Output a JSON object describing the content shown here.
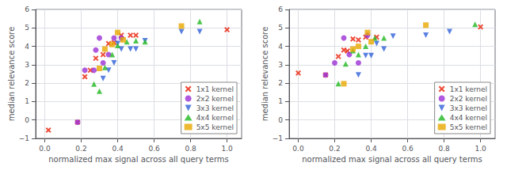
{
  "chart_data": [
    {
      "type": "scatter",
      "xlabel": "normalized max signal across all query terms",
      "ylabel": "median relevance score",
      "xlim": [
        -0.05,
        1.08
      ],
      "ylim": [
        -1.0,
        6.0
      ],
      "xticks": [
        {
          "value": 0.0,
          "label": "0.0"
        },
        0.2,
        0.4,
        0.6,
        0.8,
        {
          "value": 1.0,
          "label": "1.0"
        }
      ],
      "yticks": [
        {
          "value": -1,
          "label": "−1"
        },
        0,
        1,
        2,
        3,
        4,
        5,
        6
      ],
      "grid": true,
      "legend": "lower right",
      "series": [
        {
          "name": "1x1 kernel",
          "color": "#e8220a",
          "marker": "x",
          "x": [
            0.02,
            0.18,
            0.22,
            0.25,
            0.28,
            0.32,
            0.35,
            0.38,
            0.42,
            0.47,
            0.5,
            1.0
          ],
          "values": [
            -0.55,
            -0.12,
            2.35,
            2.7,
            3.35,
            3.55,
            4.15,
            4.2,
            4.6,
            4.6,
            4.6,
            4.9
          ]
        },
        {
          "name": "2x2 kernel",
          "color": "#9b30d4",
          "marker": "circle",
          "x": [
            0.18,
            0.22,
            0.27,
            0.28,
            0.3,
            0.32,
            0.35,
            0.38,
            0.42
          ],
          "values": [
            -0.12,
            2.7,
            2.7,
            3.8,
            4.45,
            3.1,
            3.55,
            4.45,
            4.45
          ]
        },
        {
          "name": "3x3 kernel",
          "color": "#3060d8",
          "marker": "triangle_down",
          "x": [
            0.32,
            0.35,
            0.38,
            0.4,
            0.42,
            0.47,
            0.5,
            0.55,
            0.75,
            0.85
          ],
          "values": [
            2.25,
            2.7,
            3.1,
            4.15,
            3.85,
            3.85,
            3.85,
            4.3,
            4.8,
            4.8
          ]
        },
        {
          "name": "4x4 kernel",
          "color": "#22b822",
          "marker": "triangle_up",
          "x": [
            0.27,
            0.3,
            0.33,
            0.37,
            0.4,
            0.45,
            0.5,
            0.55,
            0.85
          ],
          "values": [
            1.95,
            1.57,
            2.85,
            3.55,
            4.05,
            4.25,
            4.3,
            4.25,
            5.35
          ]
        },
        {
          "name": "5x5 kernel",
          "color": "#e8a800",
          "marker": "square",
          "x": [
            0.3,
            0.33,
            0.37,
            0.4,
            0.43,
            0.75
          ],
          "values": [
            2.8,
            3.85,
            4.1,
            4.75,
            4.35,
            5.1
          ]
        }
      ]
    },
    {
      "type": "scatter",
      "xlabel": "normalized max signal across all query terms",
      "ylabel": "median relevance score",
      "xlim": [
        -0.05,
        1.08
      ],
      "ylim": [
        -1.0,
        6.0
      ],
      "xticks": [
        {
          "value": 0.0,
          "label": "0.0"
        },
        0.2,
        0.4,
        0.6,
        0.8,
        {
          "value": 1.0,
          "label": "1.0"
        }
      ],
      "yticks": [
        {
          "value": -1,
          "label": "−1"
        },
        0,
        1,
        2,
        3,
        4,
        5,
        6
      ],
      "grid": true,
      "legend": "lower right",
      "series": [
        {
          "name": "1x1 kernel",
          "color": "#e8220a",
          "marker": "x",
          "x": [
            0.0,
            0.15,
            0.22,
            0.25,
            0.27,
            0.3,
            0.33,
            0.37,
            0.43,
            1.0
          ],
          "values": [
            2.55,
            2.45,
            3.45,
            3.8,
            3.75,
            4.4,
            4.35,
            4.5,
            4.5,
            5.05
          ]
        },
        {
          "name": "2x2 kernel",
          "color": "#9b30d4",
          "marker": "circle",
          "x": [
            0.15,
            0.2,
            0.25,
            0.28,
            0.33,
            0.38
          ],
          "values": [
            2.45,
            3.1,
            4.45,
            3.55,
            3.1,
            4.6
          ]
        },
        {
          "name": "3x3 kernel",
          "color": "#3060d8",
          "marker": "triangle_down",
          "x": [
            0.33,
            0.37,
            0.4,
            0.43,
            0.47,
            0.52,
            0.7,
            0.83
          ],
          "values": [
            2.45,
            3.5,
            3.5,
            4.15,
            3.85,
            4.55,
            4.6,
            4.8
          ]
        },
        {
          "name": "4x4 kernel",
          "color": "#22b822",
          "marker": "triangle_up",
          "x": [
            0.22,
            0.26,
            0.3,
            0.33,
            0.37,
            0.42,
            0.47,
            0.97
          ],
          "values": [
            1.97,
            3.05,
            3.77,
            3.55,
            4.0,
            4.45,
            4.45,
            5.2
          ]
        },
        {
          "name": "5x5 kernel",
          "color": "#e8a800",
          "marker": "square",
          "x": [
            0.25,
            0.3,
            0.33,
            0.38,
            0.4,
            0.7
          ],
          "values": [
            1.97,
            3.85,
            4.0,
            4.75,
            4.25,
            5.15
          ]
        }
      ]
    }
  ]
}
